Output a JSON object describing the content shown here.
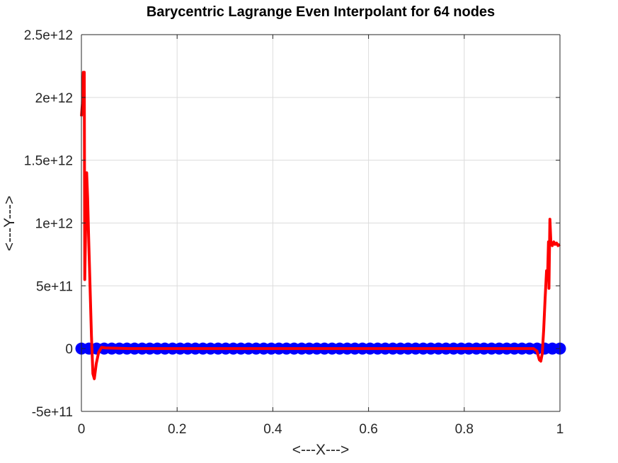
{
  "chart_data": {
    "type": "line",
    "title": "Barycentric Lagrange Even Interpolant for 64 nodes",
    "xlabel": "<---X--->",
    "ylabel": "<---Y--->",
    "xlim": [
      0,
      1
    ],
    "ylim": [
      -500000000000,
      2500000000000
    ],
    "grid": true,
    "x_ticks": [
      {
        "value": 0,
        "label": "0"
      },
      {
        "value": 0.2,
        "label": "0.2"
      },
      {
        "value": 0.4,
        "label": "0.4"
      },
      {
        "value": 0.6,
        "label": "0.6"
      },
      {
        "value": 0.8,
        "label": "0.8"
      },
      {
        "value": 1,
        "label": "1"
      }
    ],
    "y_ticks": [
      {
        "value": -500000000000,
        "label": "-5e+11"
      },
      {
        "value": 0,
        "label": "0"
      },
      {
        "value": 500000000000,
        "label": "5e+11"
      },
      {
        "value": 1000000000000,
        "label": "1e+12"
      },
      {
        "value": 1500000000000,
        "label": "1.5e+12"
      },
      {
        "value": 2000000000000,
        "label": "2e+12"
      },
      {
        "value": 2500000000000,
        "label": "2.5e+12"
      }
    ],
    "series": [
      {
        "kind": "nodes",
        "color": "#0000ff",
        "marker": "circle",
        "count": 64,
        "y": 0
      },
      {
        "kind": "interpolant",
        "color": "#ff0000",
        "points": [
          [
            0.0,
            1850000000000.0
          ],
          [
            0.002,
            1950000000000.0
          ],
          [
            0.004,
            2200000000000.0
          ],
          [
            0.005,
            1900000000000.0
          ],
          [
            0.006,
            2200000000000.0
          ],
          [
            0.007,
            550000000000.0
          ],
          [
            0.009,
            1000000000000.0
          ],
          [
            0.011,
            1400000000000.0
          ],
          [
            0.013,
            1200000000000.0
          ],
          [
            0.015,
            900000000000.0
          ],
          [
            0.018,
            500000000000.0
          ],
          [
            0.021,
            100000000000.0
          ],
          [
            0.024,
            -200000000000.0
          ],
          [
            0.027,
            -240000000000.0
          ],
          [
            0.031,
            -120000000000.0
          ],
          [
            0.036,
            -30000000000.0
          ],
          [
            0.042,
            10000000000.0
          ],
          [
            0.05,
            5000000000.0
          ],
          [
            0.1,
            0.0
          ],
          [
            0.3,
            0.0
          ],
          [
            0.5,
            0.0
          ],
          [
            0.7,
            0.0
          ],
          [
            0.9,
            0.0
          ],
          [
            0.945,
            0.0
          ],
          [
            0.952,
            -20000000000.0
          ],
          [
            0.957,
            -90000000000.0
          ],
          [
            0.96,
            -100000000000.0
          ],
          [
            0.963,
            -40000000000.0
          ],
          [
            0.966,
            150000000000.0
          ],
          [
            0.969,
            400000000000.0
          ],
          [
            0.972,
            620000000000.0
          ],
          [
            0.974,
            550000000000.0
          ],
          [
            0.976,
            850000000000.0
          ],
          [
            0.977,
            480000000000.0
          ],
          [
            0.979,
            1030000000000.0
          ],
          [
            0.981,
            850000000000.0
          ],
          [
            0.984,
            820000000000.0
          ],
          [
            0.987,
            850000000000.0
          ],
          [
            0.99,
            830000000000.0
          ],
          [
            0.993,
            840000000000.0
          ],
          [
            0.996,
            820000000000.0
          ],
          [
            1.0,
            830000000000.0
          ]
        ]
      }
    ]
  }
}
